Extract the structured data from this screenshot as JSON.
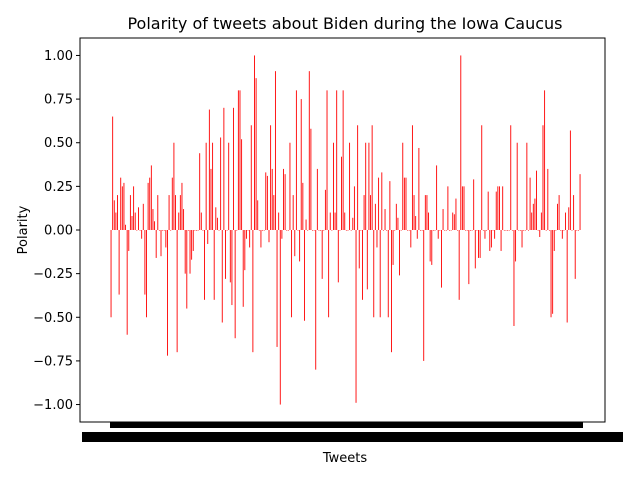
{
  "chart_data": {
    "type": "bar",
    "title": "Polarity of tweets about Biden during the Iowa Caucus",
    "xlabel": "Tweets",
    "ylabel": "Polarity",
    "ylim": [
      -1.1,
      1.1
    ],
    "y_ticks": [
      1.0,
      0.75,
      0.5,
      0.25,
      0.0,
      -0.25,
      -0.5,
      -0.75,
      -1.0
    ],
    "y_tick_labels": [
      "1.00",
      "0.75",
      "0.50",
      "0.25",
      "0.00",
      "−0.25",
      "−0.50",
      "−0.75",
      "−1.00"
    ],
    "x_tick_labels_note": "hundreds of overlapping tick labels rendered as a solid black band",
    "bar_color": "#ff0000",
    "grid": false,
    "series": [
      {
        "values": [
          -0.5,
          0.65,
          0.17,
          0.1,
          0.2,
          -0.37,
          0.3,
          0.25,
          0.27,
          0.03,
          -0.6,
          -0.12,
          0.2,
          0.08,
          0.25,
          0.1,
          0.0,
          0.13,
          0.0,
          -0.05,
          0.15,
          -0.37,
          -0.5,
          0.27,
          0.3,
          0.37,
          0.12,
          0.05,
          -0.16,
          0.2,
          0.0,
          -0.15,
          0.0,
          0.0,
          -0.1,
          -0.72,
          0.2,
          0.0,
          0.3,
          0.5,
          0.2,
          -0.7,
          0.1,
          0.2,
          0.27,
          0.12,
          -0.25,
          -0.45,
          0.0,
          -0.25,
          -0.17,
          -0.12,
          0.0,
          0.0,
          0.0,
          0.44,
          0.1,
          0.0,
          -0.4,
          0.5,
          -0.08,
          0.69,
          0.35,
          0.5,
          -0.4,
          0.13,
          0.07,
          0.0,
          0.53,
          -0.53,
          0.7,
          -0.28,
          0.0,
          0.5,
          -0.3,
          -0.43,
          0.7,
          -0.62,
          0.0,
          0.8,
          0.8,
          0.52,
          -0.44,
          -0.23,
          -0.05,
          0.0,
          -0.1,
          0.6,
          -0.7,
          1.0,
          0.87,
          0.17,
          0.0,
          -0.1,
          0.0,
          0.0,
          0.33,
          0.31,
          -0.07,
          0.6,
          0.35,
          0.2,
          0.91,
          -0.67,
          0.1,
          -1.0,
          -0.05,
          0.35,
          0.32,
          0.0,
          0.0,
          0.5,
          -0.5,
          0.2,
          -0.15,
          0.8,
          0.0,
          -0.18,
          0.75,
          0.27,
          -0.52,
          0.06,
          0.0,
          0.91,
          0.58,
          0.0,
          0.0,
          -0.8,
          0.35,
          0.0,
          0.0,
          -0.28,
          0.0,
          0.23,
          0.8,
          -0.5,
          0.1,
          0.0,
          0.5,
          0.1,
          0.8,
          -0.3,
          0.0,
          0.42,
          0.8,
          0.1,
          0.0,
          0.0,
          0.5,
          0.0,
          0.07,
          0.25,
          -0.99,
          0.6,
          -0.22,
          0.0,
          -0.4,
          0.2,
          0.5,
          -0.34,
          0.5,
          0.2,
          0.6,
          -0.5,
          0.15,
          -0.1,
          0.3,
          -0.5,
          0.33,
          0.0,
          0.12,
          0.0,
          -0.5,
          0.28,
          -0.7,
          -0.2,
          0.0,
          0.15,
          0.07,
          -0.26,
          0.0,
          0.5,
          0.3,
          0.3,
          0.0,
          0.0,
          -0.1,
          0.6,
          0.2,
          0.08,
          -0.05,
          0.47,
          0.0,
          0.0,
          -0.75,
          0.2,
          0.2,
          0.1,
          -0.18,
          -0.2,
          0.0,
          0.0,
          0.37,
          -0.05,
          0.0,
          -0.33,
          0.12,
          0.0,
          0.0,
          0.25,
          0.0,
          0.0,
          0.1,
          0.09,
          0.18,
          0.0,
          -0.4,
          1.0,
          0.25,
          0.25,
          0.0,
          0.0,
          -0.31,
          0.0,
          0.0,
          0.29,
          -0.22,
          0.0,
          -0.16,
          -0.16,
          0.6,
          0.0,
          -0.05,
          0.0,
          0.22,
          -0.12,
          -0.1,
          0.0,
          -0.05,
          0.22,
          0.25,
          0.25,
          -0.12,
          0.25,
          0.0,
          0.0,
          0.0,
          0.0,
          0.6,
          0.0,
          -0.55,
          -0.18,
          0.5,
          0.0,
          0.0,
          -0.1,
          0.0,
          0.0,
          0.5,
          0.0,
          0.3,
          0.1,
          0.15,
          0.18,
          0.34,
          0.0,
          -0.04,
          0.1,
          0.6,
          0.8,
          0.0,
          0.35,
          0.0,
          -0.5,
          -0.48,
          -0.12,
          0.0,
          0.15,
          0.2,
          0.0,
          -0.05,
          0.0,
          0.1,
          -0.53,
          0.13,
          0.57,
          0.0,
          0.2,
          -0.28,
          0.0,
          0.0,
          0.32
        ]
      }
    ]
  }
}
